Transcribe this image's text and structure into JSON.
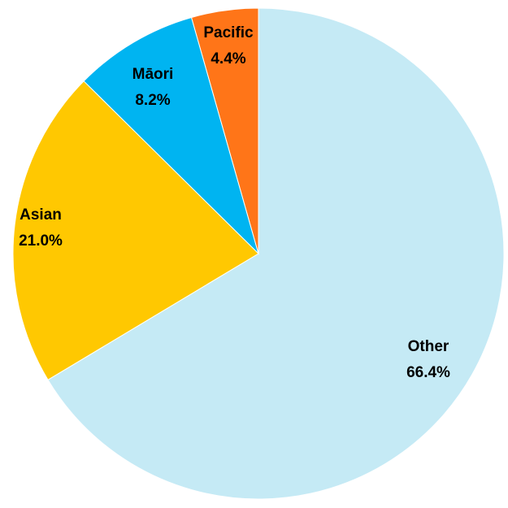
{
  "chart_data": {
    "type": "pie",
    "title": "",
    "start_angle_deg": 0,
    "direction": "clockwise",
    "legend": "none",
    "slices": [
      {
        "label": "Other",
        "value": 66.4,
        "value_label": "66.4%",
        "color": "#C5EAF5"
      },
      {
        "label": "Asian",
        "value": 21.0,
        "value_label": "21.0%",
        "color": "#FFC801"
      },
      {
        "label": "Māori",
        "value": 8.2,
        "value_label": "8.2%",
        "color": "#00B4F1"
      },
      {
        "label": "Pacific",
        "value": 4.4,
        "value_label": "4.4%",
        "color": "#FF7518"
      }
    ]
  }
}
